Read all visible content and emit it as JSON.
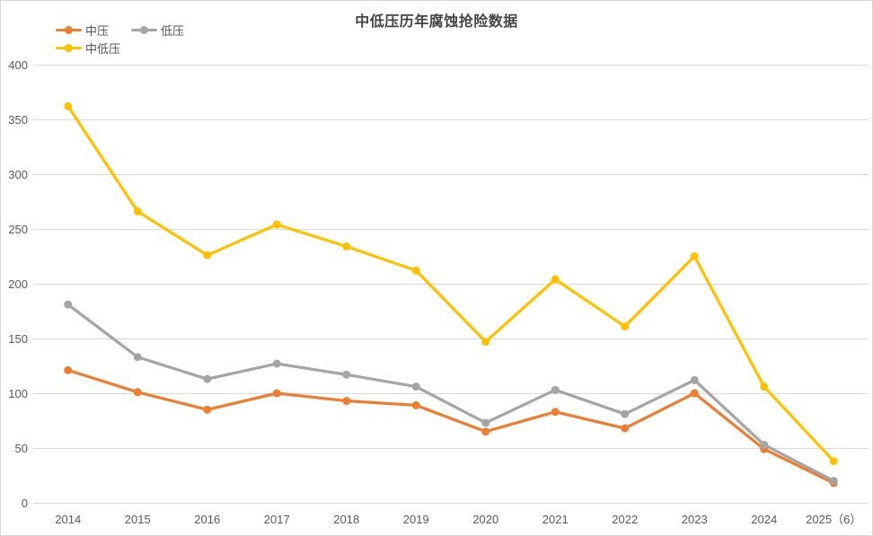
{
  "chart_data": {
    "type": "line",
    "title": "中低压历年腐蚀抢险数据",
    "categories": [
      "2014",
      "2015",
      "2016",
      "2017",
      "2018",
      "2019",
      "2020",
      "2021",
      "2022",
      "2023",
      "2024",
      "2025（6）"
    ],
    "series": [
      {
        "name": "中压",
        "color": "#ED7D31",
        "values": [
          121,
          101,
          85,
          100,
          93,
          89,
          65,
          83,
          68,
          100,
          49,
          18
        ]
      },
      {
        "name": "低压",
        "color": "#A5A5A5",
        "values": [
          181,
          133,
          113,
          127,
          117,
          106,
          73,
          103,
          81,
          112,
          53,
          20
        ]
      },
      {
        "name": "中低压",
        "color": "#FFC000",
        "values": [
          362,
          266,
          226,
          254,
          234,
          212,
          147,
          204,
          161,
          225,
          106,
          38
        ]
      }
    ],
    "ylim": [
      0,
      400
    ],
    "yticks": [
      0,
      50,
      100,
      150,
      200,
      250,
      300,
      350,
      400
    ],
    "grid": true,
    "legend_position": "top-left",
    "marker": "circle",
    "colors": {
      "gridline": "#D9D9D9",
      "axis_text": "#595959",
      "title_text": "#444444",
      "legend_text": "#555555",
      "background": "#FFFFFF",
      "border": "#D6D6D6"
    }
  }
}
